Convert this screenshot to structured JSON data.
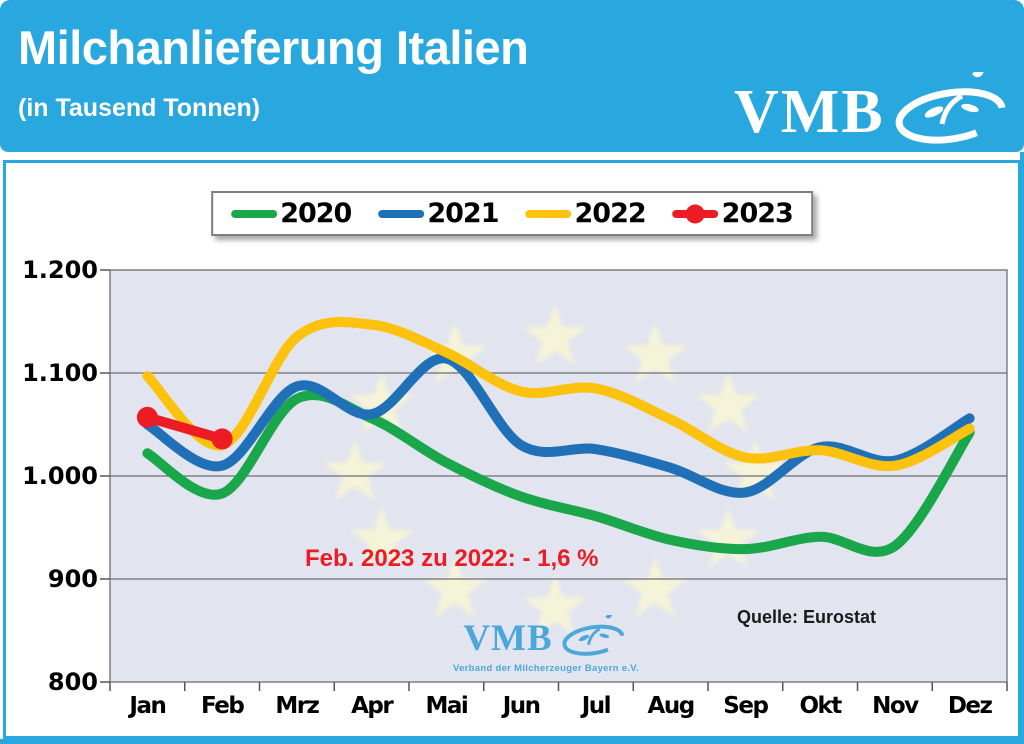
{
  "header": {
    "title": "Milchanlieferung Italien",
    "subtitle": "(in Tausend Tonnen)",
    "logo": {
      "text": "VMB",
      "icon": "vmb-swirl-icon"
    }
  },
  "colors": {
    "header_background": "#29A8E0",
    "panel_border": "#29A8E0",
    "plot_background": "#E2E4EF",
    "eu_star": "#F6F4D8",
    "gridline": "#6E6E6E",
    "series_2020": "#1AA64A",
    "series_2021": "#1F70B7",
    "series_2022": "#FDC20D",
    "series_2023": "#ED1C24",
    "annotation_red": "#EC1C24"
  },
  "chart_data": {
    "type": "line",
    "title": "Milchanlieferung Italien (in Tausend Tonnen)",
    "categories": [
      "Jan",
      "Feb",
      "Mrz",
      "Apr",
      "Mai",
      "Jun",
      "Jul",
      "Aug",
      "Sep",
      "Okt",
      "Nov",
      "Dez"
    ],
    "series": [
      {
        "name": "2020",
        "color": "#1AA64A",
        "values": [
          1022,
          983,
          1075,
          1056,
          1013,
          980,
          961,
          938,
          929,
          941,
          932,
          1042
        ]
      },
      {
        "name": "2021",
        "color": "#1F70B7",
        "values": [
          1050,
          1010,
          1087,
          1060,
          1114,
          1030,
          1026,
          1008,
          984,
          1028,
          1015,
          1056
        ]
      },
      {
        "name": "2022",
        "color": "#FDC20D",
        "values": [
          1097,
          1030,
          1135,
          1147,
          1120,
          1082,
          1085,
          1055,
          1018,
          1025,
          1010,
          1046
        ]
      },
      {
        "name": "2023",
        "color": "#ED1C24",
        "marker": true,
        "values": [
          1057,
          1036
        ]
      }
    ],
    "ylim": [
      800,
      1200
    ],
    "yticks": [
      {
        "label": "1.200",
        "value": 1200
      },
      {
        "label": "1.100",
        "value": 1100
      },
      {
        "label": "1.000",
        "value": 1000
      },
      {
        "label": "900",
        "value": 900
      },
      {
        "label": "800",
        "value": 800
      }
    ],
    "grid": true,
    "legend_position": "top",
    "background_emblem": "eu-stars-circle",
    "annotation": "Feb. 2023 zu 2022: - 1,6 %",
    "source": "Quelle: Eurostat"
  },
  "watermark": {
    "logo_text": "VMB",
    "caption": "Verband der Milcherzeuger Bayern e.V.",
    "icon": "vmb-swirl-icon"
  }
}
